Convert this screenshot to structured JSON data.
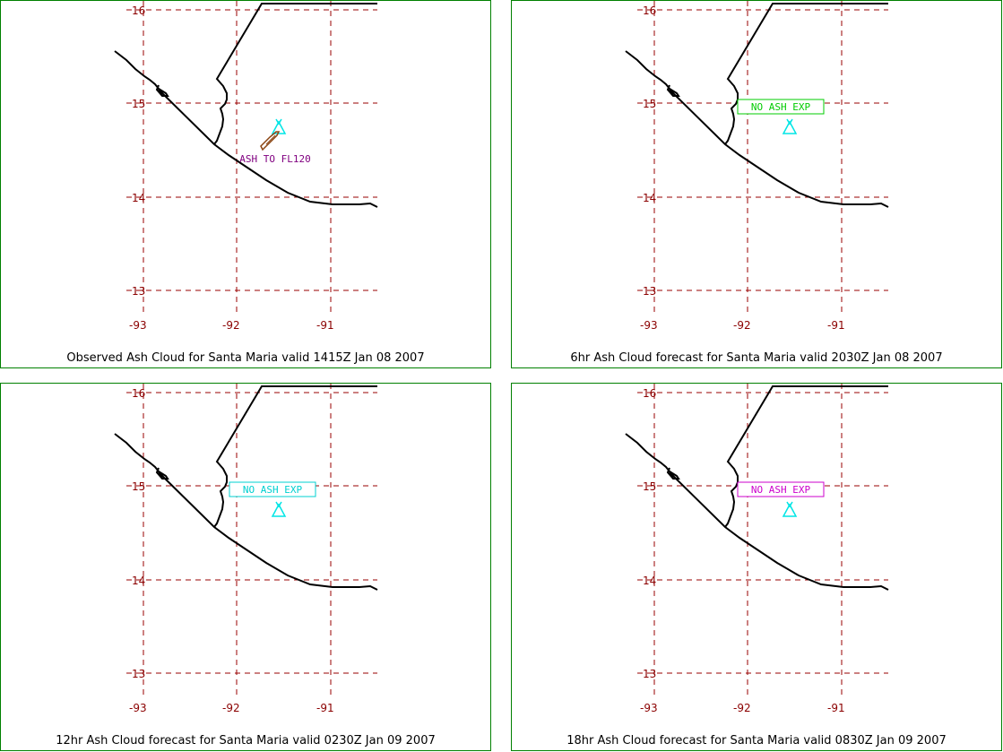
{
  "colors": {
    "frame": "#008000",
    "grid": "#990000",
    "tick_label": "#8b0000",
    "coast": "#000000",
    "volcano": "#00e5e5",
    "ash_cloud": "#8b4513"
  },
  "axes": {
    "lat_ticks": [
      "16",
      "15",
      "14",
      "13"
    ],
    "lon_ticks": [
      "-93",
      "-92",
      "-91"
    ]
  },
  "panels": [
    {
      "caption": "Observed Ash Cloud for Santa  Maria valid 1415Z Jan 08 2007",
      "label": "ASH TO FL120",
      "label_color": "#800080",
      "label_boxed": false,
      "ash_cloud_shown": true,
      "volcano_icon": "volcano-icon"
    },
    {
      "caption": "6hr Ash Cloud forecast for Santa  Maria valid 2030Z Jan 08 2007",
      "label": "NO ASH EXP",
      "label_color": "#00cc00",
      "label_boxed": true,
      "ash_cloud_shown": false,
      "volcano_icon": "volcano-icon"
    },
    {
      "caption": "12hr Ash Cloud forecast for Santa  Maria valid 0230Z Jan 09 2007",
      "label": "NO ASH EXP",
      "label_color": "#00d0d0",
      "label_boxed": true,
      "ash_cloud_shown": false,
      "volcano_icon": "volcano-icon"
    },
    {
      "caption": "18hr Ash Cloud forecast for Santa  Maria valid 0830Z Jan 09 2007",
      "label": "NO ASH EXP",
      "label_color": "#cc00cc",
      "label_boxed": true,
      "ash_cloud_shown": false,
      "volcano_icon": "volcano-icon"
    }
  ]
}
